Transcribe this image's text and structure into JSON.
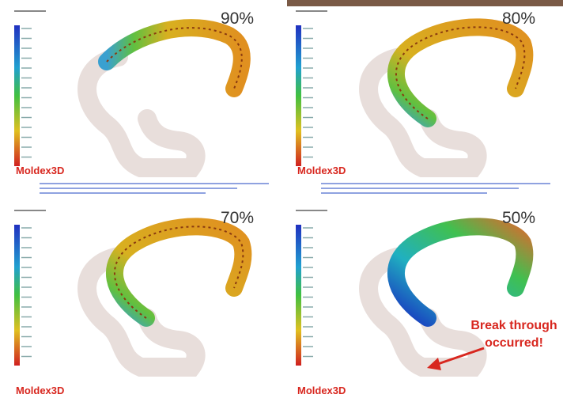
{
  "panels": [
    {
      "label": "90%",
      "logo": "Moldex3D"
    },
    {
      "label": "80%",
      "logo": "Moldex3D"
    },
    {
      "label": "70%",
      "logo": "Moldex3D"
    },
    {
      "label": "50%",
      "logo": "Moldex3D"
    }
  ],
  "annotation": [
    "Break through",
    "occurred!"
  ]
}
